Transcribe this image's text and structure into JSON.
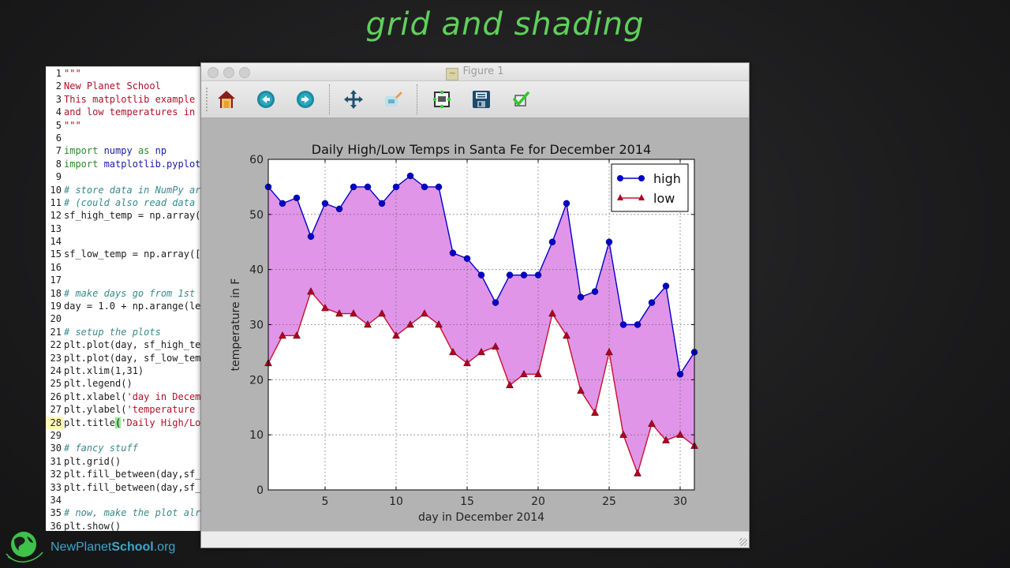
{
  "slide": {
    "title": "grid and shading"
  },
  "editor": {
    "lines": [
      {
        "n": "1",
        "parts": [
          {
            "t": "\"\"\"",
            "c": "c-str"
          }
        ]
      },
      {
        "n": "2",
        "parts": [
          {
            "t": "New Planet School",
            "c": "c-str"
          }
        ]
      },
      {
        "n": "3",
        "parts": [
          {
            "t": "This matplotlib example",
            "c": "c-str"
          }
        ]
      },
      {
        "n": "4",
        "parts": [
          {
            "t": "and low temperatures in",
            "c": "c-str"
          }
        ]
      },
      {
        "n": "5",
        "parts": [
          {
            "t": "\"\"\"",
            "c": "c-str"
          }
        ]
      },
      {
        "n": "6",
        "parts": []
      },
      {
        "n": "7",
        "parts": [
          {
            "t": "import ",
            "c": "c-kw"
          },
          {
            "t": "numpy ",
            "c": "c-mod"
          },
          {
            "t": "as ",
            "c": "c-kw"
          },
          {
            "t": "np",
            "c": "c-mod"
          }
        ]
      },
      {
        "n": "8",
        "parts": [
          {
            "t": "import ",
            "c": "c-kw"
          },
          {
            "t": "matplotlib.pyplot",
            "c": "c-mod"
          }
        ]
      },
      {
        "n": "9",
        "parts": []
      },
      {
        "n": "10",
        "parts": [
          {
            "t": "# store data in NumPy ar",
            "c": "c-cm"
          }
        ]
      },
      {
        "n": "11",
        "parts": [
          {
            "t": "# (could also read data",
            "c": "c-cm"
          }
        ]
      },
      {
        "n": "12",
        "parts": [
          {
            "t": "sf_high_temp = np.array(",
            "c": "c-plain"
          }
        ]
      },
      {
        "n": "13",
        "parts": []
      },
      {
        "n": "14",
        "parts": []
      },
      {
        "n": "15",
        "parts": [
          {
            "t": "sf_low_temp = np.array([",
            "c": "c-plain"
          }
        ]
      },
      {
        "n": "16",
        "parts": []
      },
      {
        "n": "17",
        "parts": []
      },
      {
        "n": "18",
        "parts": [
          {
            "t": "# make days go from 1st",
            "c": "c-cm"
          }
        ]
      },
      {
        "n": "19",
        "parts": [
          {
            "t": "day = 1.0 + np.arange(le",
            "c": "c-plain"
          }
        ]
      },
      {
        "n": "20",
        "parts": []
      },
      {
        "n": "21",
        "parts": [
          {
            "t": "# setup the plots",
            "c": "c-cm"
          }
        ]
      },
      {
        "n": "22",
        "parts": [
          {
            "t": "plt.plot(day, sf_high_te",
            "c": "c-plain"
          }
        ]
      },
      {
        "n": "23",
        "parts": [
          {
            "t": "plt.plot(day, sf_low_tem",
            "c": "c-plain"
          }
        ]
      },
      {
        "n": "24",
        "parts": [
          {
            "t": "plt.xlim(1,31)",
            "c": "c-plain"
          }
        ]
      },
      {
        "n": "25",
        "parts": [
          {
            "t": "plt.legend()",
            "c": "c-plain"
          }
        ]
      },
      {
        "n": "26",
        "parts": [
          {
            "t": "plt.xlabel(",
            "c": "c-plain"
          },
          {
            "t": "'day in Decem",
            "c": "c-str"
          }
        ]
      },
      {
        "n": "27",
        "parts": [
          {
            "t": "plt.ylabel(",
            "c": "c-plain"
          },
          {
            "t": "'temperature",
            "c": "c-str"
          }
        ]
      },
      {
        "n": "28",
        "hl": true,
        "parts": [
          {
            "t": "plt.title",
            "c": "c-plain"
          },
          {
            "t": "(",
            "c": "paren-hl"
          },
          {
            "t": "'Daily High/Lo",
            "c": "c-str"
          }
        ]
      },
      {
        "n": "29",
        "parts": []
      },
      {
        "n": "30",
        "parts": [
          {
            "t": "# fancy stuff",
            "c": "c-cm"
          }
        ]
      },
      {
        "n": "31",
        "parts": [
          {
            "t": "plt.grid()",
            "c": "c-plain"
          }
        ]
      },
      {
        "n": "32",
        "parts": [
          {
            "t": "plt.fill_between(day,sf_",
            "c": "c-plain"
          }
        ]
      },
      {
        "n": "33",
        "parts": [
          {
            "t": "plt.fill_between(day,sf_",
            "c": "c-plain"
          }
        ]
      },
      {
        "n": "34",
        "parts": []
      },
      {
        "n": "35",
        "parts": [
          {
            "t": "# now, make the plot alr",
            "c": "c-cm"
          }
        ]
      },
      {
        "n": "36",
        "parts": [
          {
            "t": "plt.show()",
            "c": "c-plain"
          }
        ]
      }
    ]
  },
  "figure_window": {
    "title": "Figure 1",
    "toolbar": [
      {
        "name": "home-button",
        "icon": "home-icon",
        "tip": "Home"
      },
      {
        "name": "back-button",
        "icon": "arrow-left-icon",
        "tip": "Back"
      },
      {
        "name": "forward-button",
        "icon": "arrow-right-icon",
        "tip": "Forward"
      },
      {
        "name": "pan-button",
        "icon": "move-arrows-icon",
        "tip": "Pan"
      },
      {
        "name": "zoom-button",
        "icon": "zoom-rect-icon",
        "tip": "Zoom"
      },
      {
        "name": "subplots-button",
        "icon": "subplots-icon",
        "tip": "Subplots"
      },
      {
        "name": "save-button",
        "icon": "floppy-disk-icon",
        "tip": "Save"
      },
      {
        "name": "edit-button",
        "icon": "checkmark-icon",
        "tip": "Edit"
      }
    ]
  },
  "colors": {
    "high": "#0000c8",
    "low": "#c8102e",
    "fill": "#e095e8",
    "title_green": "#5fd05a",
    "logo_blue": "#3fa6c8"
  },
  "logo": {
    "prefix": "NewPlanet",
    "bold": "School",
    "suffix": ".org"
  },
  "chart_data": {
    "type": "line",
    "title": "Daily High/Low Temps in Santa Fe for December 2014",
    "xlabel": "day in December 2014",
    "ylabel": "temperature in F",
    "xlim": [
      1,
      31
    ],
    "ylim": [
      0,
      60
    ],
    "xticks": [
      5,
      10,
      15,
      20,
      25,
      30
    ],
    "yticks": [
      0,
      10,
      20,
      30,
      40,
      50,
      60
    ],
    "grid": true,
    "legend_position": "upper right",
    "fill_between": {
      "lower": "low",
      "upper": "high",
      "color": "#e095e8"
    },
    "x": [
      1,
      2,
      3,
      4,
      5,
      6,
      7,
      8,
      9,
      10,
      11,
      12,
      13,
      14,
      15,
      16,
      17,
      18,
      19,
      20,
      21,
      22,
      23,
      24,
      25,
      26,
      27,
      28,
      29,
      30,
      31
    ],
    "series": [
      {
        "name": "high",
        "marker": "circle",
        "color": "#0000c8",
        "values": [
          55,
          52,
          53,
          46,
          52,
          51,
          55,
          55,
          52,
          55,
          57,
          55,
          55,
          43,
          42,
          39,
          34,
          39,
          39,
          39,
          45,
          52,
          35,
          36,
          45,
          30,
          30,
          34,
          37,
          21,
          25
        ]
      },
      {
        "name": "low",
        "marker": "triangle",
        "color": "#c8102e",
        "values": [
          23,
          28,
          28,
          36,
          33,
          32,
          32,
          30,
          32,
          28,
          30,
          32,
          30,
          25,
          23,
          25,
          26,
          19,
          21,
          21,
          32,
          28,
          18,
          14,
          25,
          10,
          3,
          12,
          9,
          10,
          8
        ]
      }
    ]
  }
}
